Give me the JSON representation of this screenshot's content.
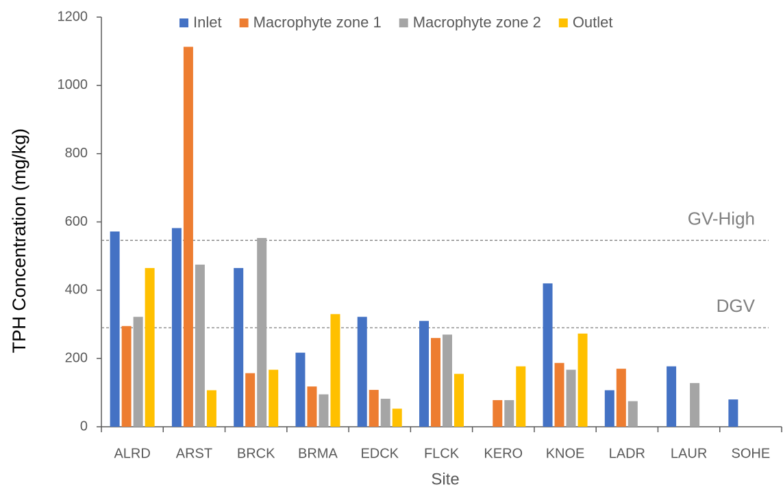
{
  "chart_data": {
    "type": "bar",
    "x_label": "Site",
    "y_label": "TPH Concentration  (mg/kg)",
    "categories": [
      "ALRD",
      "ARST",
      "BRCK",
      "BRMA",
      "EDCK",
      "FLCK",
      "KERO",
      "KNOE",
      "LADR",
      "LAUR",
      "SOHE"
    ],
    "series": [
      {
        "name": "Inlet",
        "color": "#4472c4",
        "values": [
          572,
          582,
          465,
          217,
          322,
          310,
          null,
          420,
          107,
          177,
          80
        ]
      },
      {
        "name": "Macrophyte zone 1",
        "color": "#ed7d31",
        "values": [
          295,
          1113,
          157,
          118,
          108,
          260,
          78,
          187,
          170,
          null,
          null
        ]
      },
      {
        "name": "Macrophyte zone 2",
        "color": "#a5a5a5",
        "values": [
          322,
          475,
          553,
          95,
          82,
          270,
          78,
          167,
          75,
          128,
          null
        ]
      },
      {
        "name": "Outlet",
        "color": "#ffc000",
        "values": [
          465,
          107,
          167,
          330,
          53,
          155,
          177,
          273,
          null,
          null,
          null
        ]
      }
    ],
    "reference_lines": [
      {
        "label": "GV-High",
        "value": 546
      },
      {
        "label": "DGV",
        "value": 290
      }
    ],
    "ylim": [
      0,
      1200
    ],
    "yticks": [
      0,
      200,
      400,
      600,
      800,
      1000,
      1200
    ],
    "grid": false,
    "legend": "top"
  }
}
